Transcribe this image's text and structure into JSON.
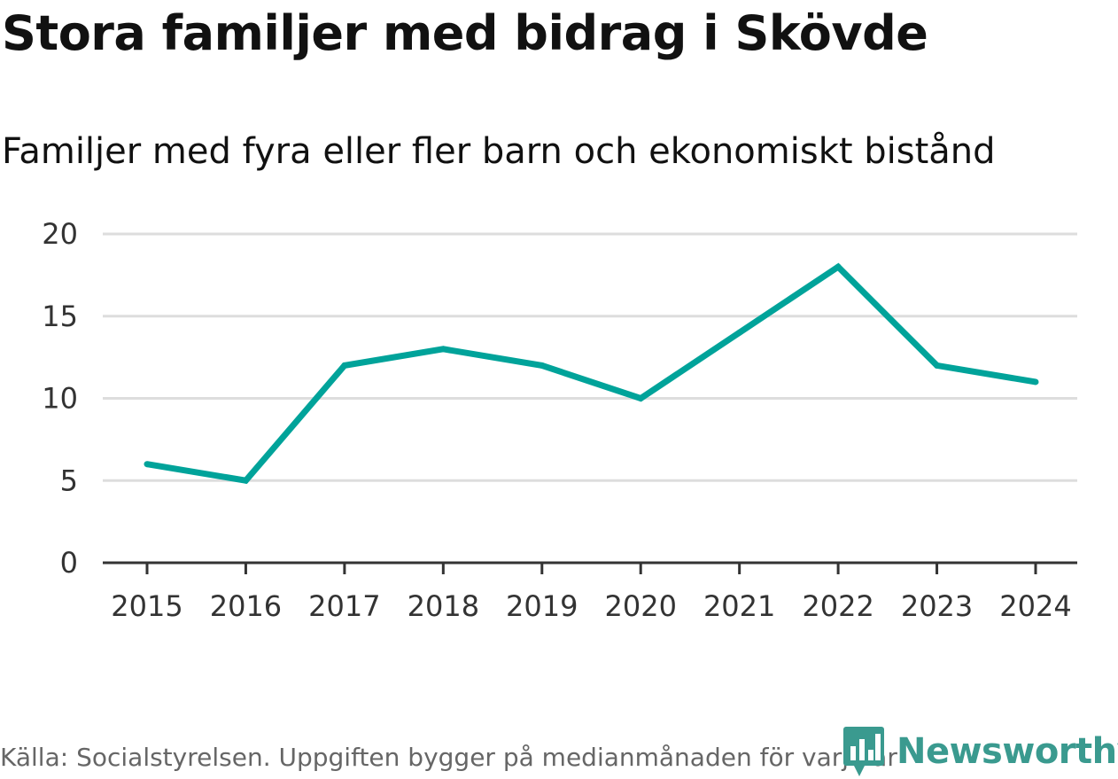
{
  "header": {
    "title": "Stora familjer med bidrag i Skövde",
    "subtitle": "Familjer med fyra eller fler barn och ekonomiskt bistånd"
  },
  "footer": {
    "source": "Källa: Socialstyrelsen. Uppgiften bygger på medianmånaden för varje år",
    "logo_text": "Newsworthy"
  },
  "colors": {
    "series": "#00a39a",
    "grid": "#dddddd",
    "axis": "#333333",
    "logo": "#3a9a8f"
  },
  "chart_data": {
    "type": "line",
    "title": "Stora familjer med bidrag i Skövde",
    "subtitle": "Familjer med fyra eller fler barn och ekonomiskt bistånd",
    "xlabel": "",
    "ylabel": "",
    "x": [
      "2015",
      "2016",
      "2017",
      "2018",
      "2019",
      "2020",
      "2021",
      "2022",
      "2023",
      "2024"
    ],
    "series": [
      {
        "name": "Familjer med fyra eller fler barn och ekonomiskt bistånd",
        "values": [
          6,
          5,
          12,
          13,
          12,
          10,
          14,
          18,
          12,
          11
        ]
      }
    ],
    "ylim": [
      0,
      20
    ],
    "yticks": [
      0,
      5,
      10,
      15,
      20
    ],
    "grid": true,
    "legend": "none"
  }
}
